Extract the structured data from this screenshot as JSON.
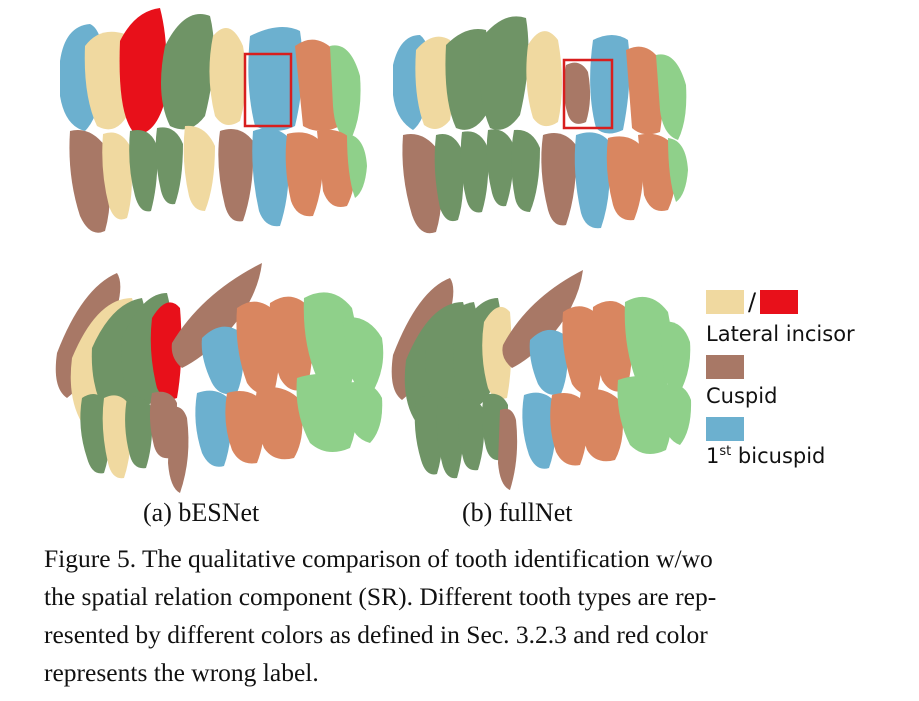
{
  "subfigures": {
    "a": "(a) bESNet",
    "b": "(b) fullNet"
  },
  "legend": {
    "lateral_incisor": {
      "label": "Lateral incisor",
      "colors": [
        "#f0d9a0",
        "#e8101a"
      ],
      "separator": "/"
    },
    "cuspid": {
      "label": "Cuspid",
      "color": "#a87866"
    },
    "first_bicuspid": {
      "ordinal": "1",
      "ordinal_suffix": "st",
      "label": " bicuspid",
      "color": "#6cb0cf"
    }
  },
  "caption": {
    "lines": [
      "Figure 5. The qualitative comparison of tooth identification w/wo",
      "the spatial relation component (SR). Different tooth types are rep-",
      "resented by different colors as defined in Sec. 3.2.3 and red color",
      "represents the wrong label."
    ]
  },
  "colors": {
    "lateral_incisor": "#f0d9a0",
    "wrong_label": "#e8101a",
    "cuspid": "#a87866",
    "first_bicuspid": "#6cb0cf",
    "central_incisor": "#6f9466",
    "second_bicuspid": "#d98660",
    "molar": "#8fd08a",
    "highlight_box": "#d81e1e"
  }
}
